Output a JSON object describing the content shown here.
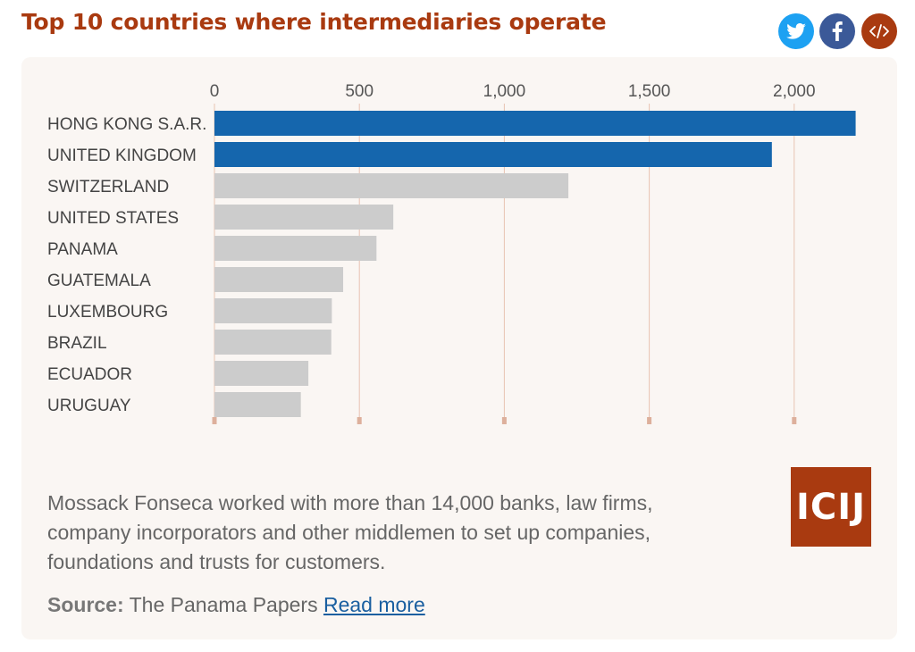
{
  "header": {
    "title": "Top 10 countries where intermediaries operate",
    "share_twitter_icon": "twitter-icon",
    "share_facebook_icon": "facebook-icon",
    "embed_icon": "embed-code-icon",
    "twitter_color": "#1da1f2",
    "facebook_color": "#3b5998",
    "embed_color": "#a93a10"
  },
  "chart_data": {
    "type": "bar",
    "orientation": "horizontal",
    "categories": [
      "HONG KONG S.A.R.",
      "UNITED KINGDOM",
      "SWITZERLAND",
      "UNITED STATES",
      "PANAMA",
      "GUATEMALA",
      "LUXEMBOURG",
      "BRAZIL",
      "ECUADOR",
      "URUGUAY"
    ],
    "values": [
      2212,
      1923,
      1221,
      617,
      559,
      444,
      405,
      403,
      324,
      298
    ],
    "highlight_colors": [
      "#1566ad",
      "#1566ad",
      "#cccccc",
      "#cccccc",
      "#cccccc",
      "#cccccc",
      "#cccccc",
      "#cccccc",
      "#cccccc",
      "#cccccc"
    ],
    "xticks": [
      0,
      500,
      1000,
      1500,
      2000
    ],
    "xtick_labels": [
      "0",
      "500",
      "1,000",
      "1,500",
      "2,000"
    ],
    "xlim": [
      0,
      2220
    ],
    "grid": true,
    "grid_color": "#e8c4b2",
    "title": "Top 10 countries where intermediaries operate"
  },
  "footer": {
    "description": "Mossack Fonseca worked with more than 14,000 banks, law firms, company incorporators and other middlemen to set up companies, foundations and trusts for customers.",
    "source_label": "Source:",
    "source_text": "The Panama Papers",
    "read_more": "Read more",
    "logo_text": "ICIJ"
  }
}
